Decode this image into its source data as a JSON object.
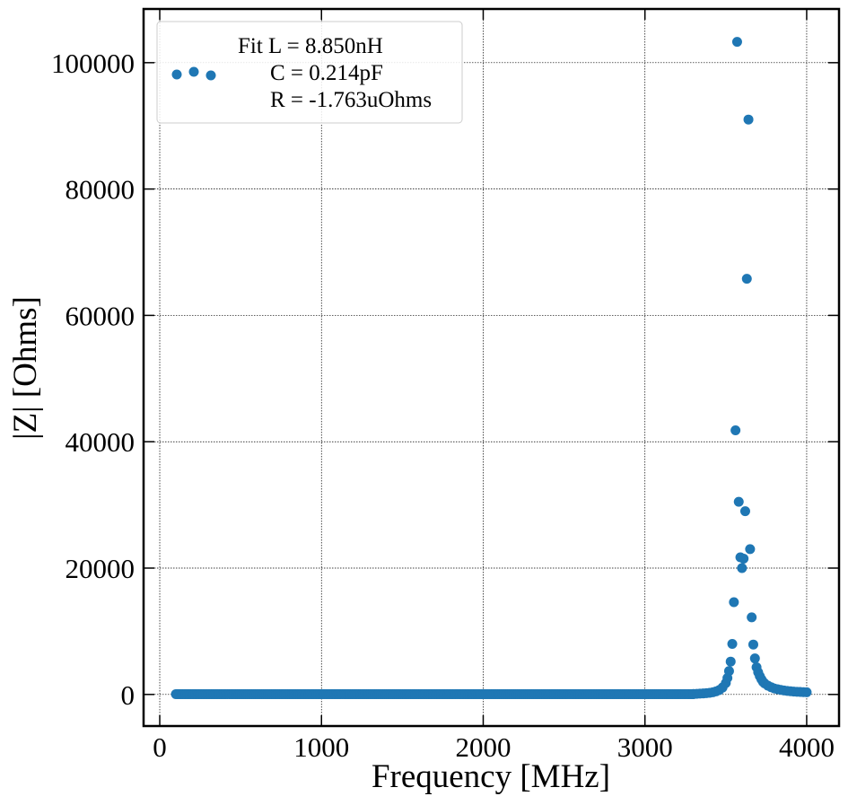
{
  "chart_data": {
    "type": "scatter",
    "xlabel": "Frequency [MHz]",
    "ylabel": "|Z| [Ohms]",
    "xlim": [
      -100,
      4200
    ],
    "ylim": [
      -5000,
      108500
    ],
    "xticks": [
      0,
      1000,
      2000,
      3000,
      4000
    ],
    "yticks": [
      0,
      20000,
      40000,
      60000,
      80000,
      100000
    ],
    "xtick_labels": [
      "0",
      "1000",
      "2000",
      "3000",
      "4000"
    ],
    "ytick_labels": [
      "0",
      "20000",
      "40000",
      "60000",
      "80000",
      "100000"
    ],
    "grid": true,
    "legend_position": "top-left",
    "legend": {
      "line1": "Fit L = 8.850nH",
      "line2": "C = 0.214pF",
      "line3": "R = -1.763uOhms"
    },
    "series": [
      {
        "color": "#1f77b4",
        "x": [
          100,
          3300,
          3320,
          3340,
          3360,
          3380,
          3400,
          3420,
          3440,
          3460,
          3480,
          3500,
          3510,
          3520,
          3530,
          3540,
          3550,
          3560,
          3570,
          3580,
          3590,
          3600,
          3610,
          3620,
          3630,
          3640,
          3650,
          3660,
          3670,
          3680,
          3690,
          3700,
          3710,
          3720,
          3730,
          3740,
          3760,
          3780,
          3800,
          3820,
          3840,
          3860,
          3880,
          3900,
          3920,
          3940,
          3960,
          3980,
          4000
        ],
        "y": [
          50,
          80,
          100,
          130,
          160,
          200,
          260,
          350,
          480,
          700,
          1100,
          1800,
          2600,
          3700,
          5200,
          8000,
          14600,
          41800,
          103300,
          30500,
          21700,
          20000,
          21500,
          29000,
          65800,
          91000,
          23000,
          12200,
          7900,
          5700,
          4300,
          3500,
          2900,
          2400,
          2000,
          1750,
          1400,
          1150,
          950,
          820,
          720,
          630,
          560,
          500,
          460,
          420,
          390,
          360,
          340
        ]
      }
    ]
  }
}
